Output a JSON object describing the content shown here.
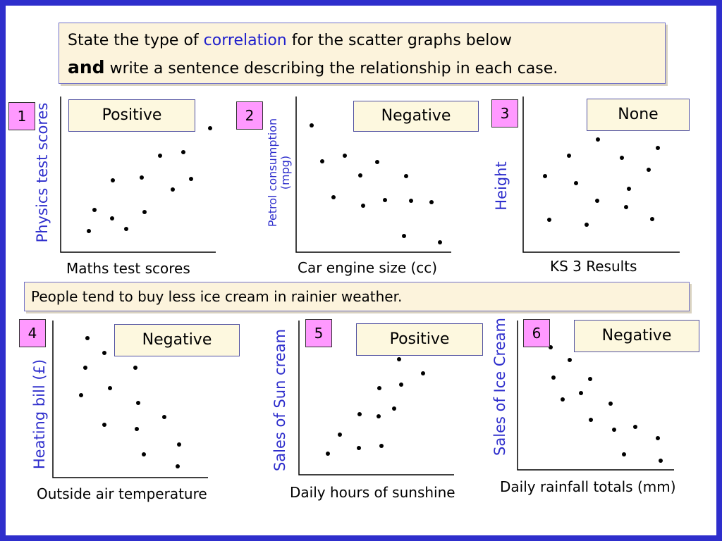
{
  "instruction": {
    "part1": "State the type of ",
    "highlight": "correlation",
    "part2": " for the scatter graphs below",
    "bold": "and",
    "part3": " write a sentence describing the relationship in each case."
  },
  "example_sentence": "People tend to buy less ice cream in rainier weather.",
  "graphs": [
    {
      "number": "1",
      "answer": "Positive",
      "ylabel": "Physics test scores",
      "xlabel": "Maths test scores"
    },
    {
      "number": "2",
      "answer": "Negative",
      "ylabel": "Petrol consumption (mpg)",
      "xlabel": "Car engine size (cc)"
    },
    {
      "number": "3",
      "answer": "None",
      "ylabel": "Height",
      "xlabel": "KS 3 Results"
    },
    {
      "number": "4",
      "answer": "Negative",
      "ylabel": "Heating bill (£)",
      "xlabel": "Outside air temperature"
    },
    {
      "number": "5",
      "answer": "Positive",
      "ylabel": "Sales of Sun cream",
      "xlabel": "Daily hours of sunshine"
    },
    {
      "number": "6",
      "answer": "Negative",
      "ylabel": "Sales of Ice Cream",
      "xlabel": "Daily rainfall totals (mm)"
    }
  ],
  "colors": {
    "border": "#2e2ecc",
    "axis_label": "#2e2ecc",
    "number_box": "#ff99ff",
    "panel": "#fcf3dc"
  }
}
